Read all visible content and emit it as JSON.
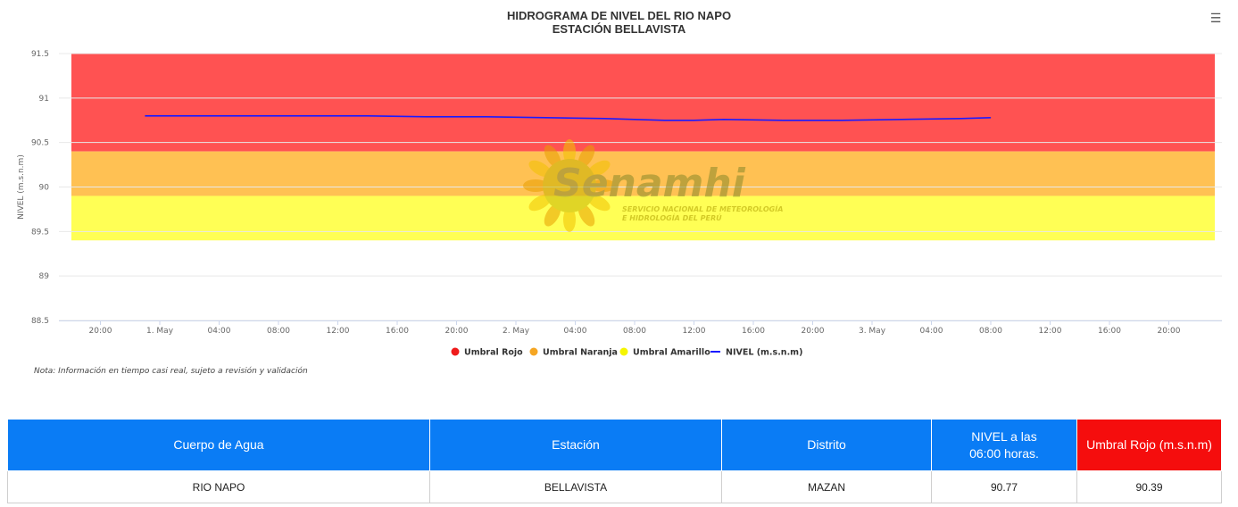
{
  "title_line1": "HIDROGRAMA DE NIVEL DEL RIO NAPO",
  "title_line2": "ESTACIÓN BELLAVISTA",
  "menu_icon": "hamburger-menu-icon",
  "watermark": {
    "brand": "Senamhi",
    "line1": "SERVICIO NACIONAL DE METEOROLOGÍA",
    "line2": "E HIDROLOGÍA DEL PERÚ"
  },
  "note": "Nota: Información en tiempo casi real, sujeto a revisión y validación",
  "chart_data": {
    "type": "line",
    "ylabel": "NIVEL (m.s.n.m)",
    "ylim": [
      88.5,
      91.5
    ],
    "yticks": [
      "88.5",
      "89",
      "89.5",
      "90",
      "90.5",
      "91",
      "91.5"
    ],
    "x_ticks": [
      "20:00",
      "1. May",
      "04:00",
      "08:00",
      "12:00",
      "16:00",
      "20:00",
      "2. May",
      "04:00",
      "08:00",
      "12:00",
      "16:00",
      "20:00",
      "3. May",
      "04:00",
      "08:00",
      "12:00",
      "16:00",
      "20:00"
    ],
    "bands": [
      {
        "name": "Umbral Rojo",
        "from": 90.4,
        "to": 91.5,
        "color": "#ff5252",
        "legend_color": "#ef1b1b"
      },
      {
        "name": "Umbral Naranja",
        "from": 89.9,
        "to": 90.4,
        "color": "#ffc153",
        "legend_color": "#f5a623"
      },
      {
        "name": "Umbral Amarillo",
        "from": 89.4,
        "to": 89.9,
        "color": "#ffff55",
        "legend_color": "#f5f500"
      }
    ],
    "series": [
      {
        "name": "NIVEL (m.s.n.m)",
        "color": "#1a1aff",
        "x_hours": [
          -1,
          2,
          6,
          10,
          14,
          18,
          22,
          26,
          30,
          34,
          36,
          38,
          42,
          46,
          50,
          54,
          56
        ],
        "y": [
          90.8,
          90.8,
          90.8,
          90.8,
          90.8,
          90.79,
          90.79,
          90.78,
          90.77,
          90.75,
          90.75,
          90.76,
          90.75,
          90.75,
          90.76,
          90.77,
          90.78
        ]
      }
    ],
    "grid": true,
    "legend_position": "bottom-center"
  },
  "table": {
    "headers": [
      "Cuerpo de Agua",
      "Estación",
      "Distrito",
      "NIVEL a las\n06:00 horas.",
      "Umbral Rojo (m.s.n.m)"
    ],
    "row": [
      "RIO NAPO",
      "BELLAVISTA",
      "MAZAN",
      "90.77",
      "90.39"
    ]
  }
}
